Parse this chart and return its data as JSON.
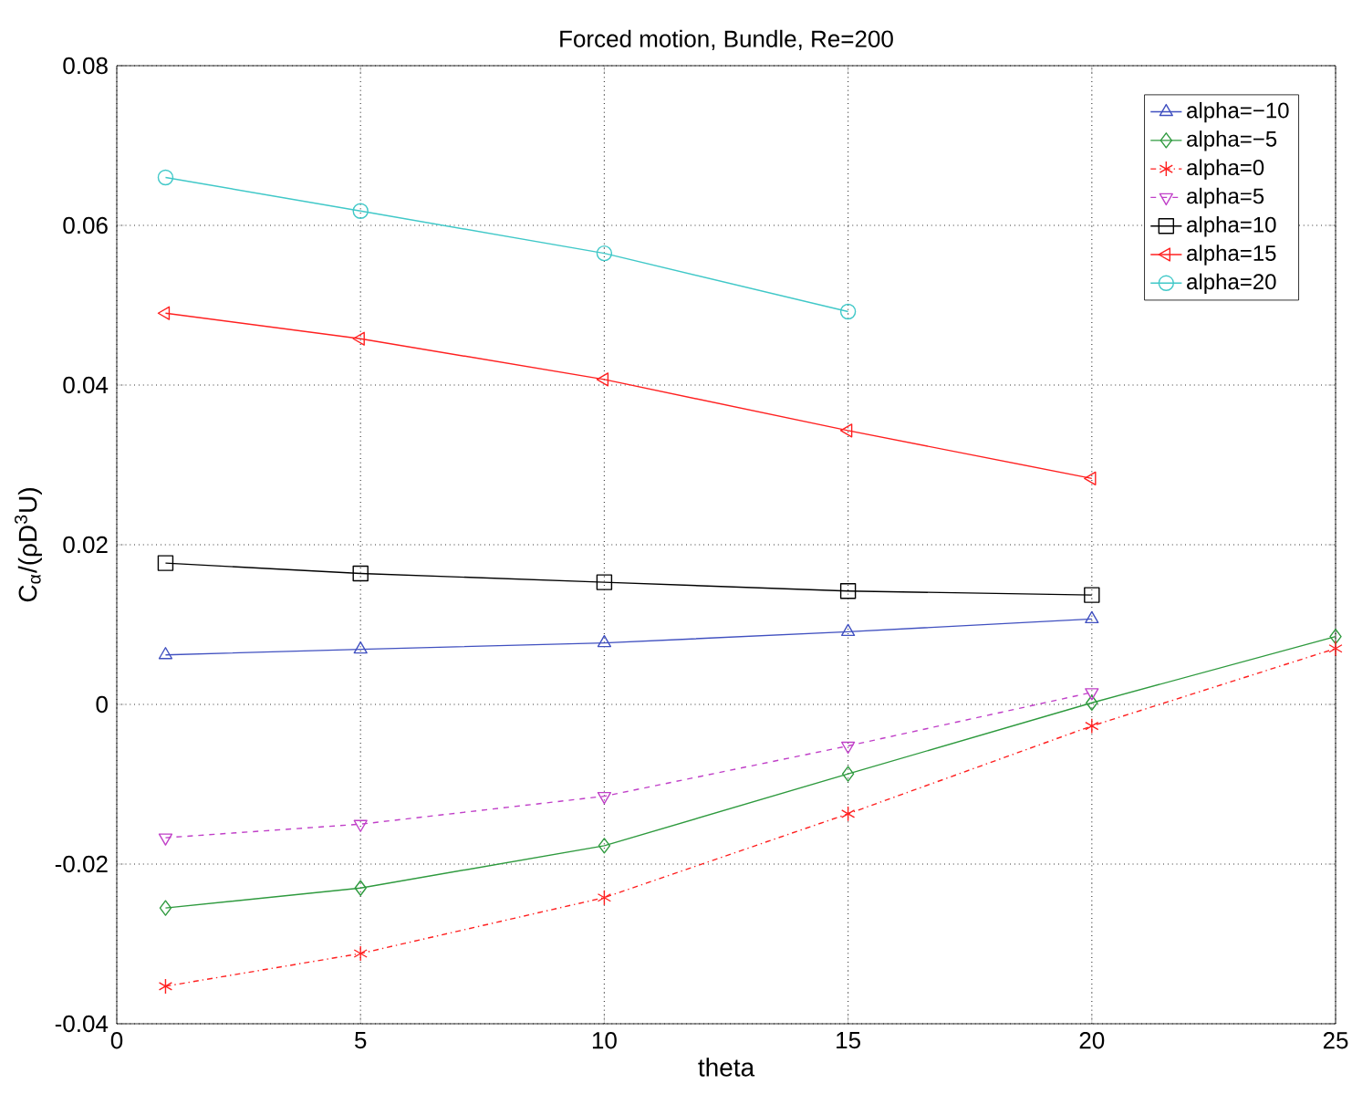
{
  "chart_data": {
    "type": "line",
    "title": "Forced motion, Bundle, Re=200",
    "xlabel": "theta",
    "ylabel": "C$_{α}$/(ρD$^{3}$U)",
    "xlim": [
      0,
      25
    ],
    "xticks": [
      0,
      5,
      10,
      15,
      20,
      25
    ],
    "ylim": [
      -0.04,
      0.08
    ],
    "yticks": [
      -0.04,
      -0.02,
      0,
      0.02,
      0.04,
      0.06,
      0.08
    ],
    "grid": true,
    "legend": "top right",
    "series": [
      {
        "name": "alpha=−10",
        "color": "#4050c0",
        "marker": "triangle",
        "line_style": "solid",
        "x": [
          1,
          5,
          10,
          15,
          20
        ],
        "values": [
          0.0062,
          0.0069,
          0.0077,
          0.0091,
          0.0107
        ]
      },
      {
        "name": "alpha=−5",
        "color": "#2e9a3e",
        "marker": "diamond",
        "line_style": "solid",
        "x": [
          1,
          5,
          10,
          15,
          20,
          25
        ],
        "values": [
          -0.0255,
          -0.023,
          -0.0177,
          -0.0087,
          0.0002,
          0.0085
        ]
      },
      {
        "name": "alpha=0",
        "color": "#ff2020",
        "marker": "cross",
        "line_style": "dashdot",
        "x": [
          1,
          5,
          10,
          15,
          20,
          25
        ],
        "values": [
          -0.0353,
          -0.0312,
          -0.0242,
          -0.0137,
          -0.0027,
          0.007
        ]
      },
      {
        "name": "alpha=5",
        "color": "#c040c8",
        "marker": "triangle-down",
        "line_style": "dashed",
        "x": [
          1,
          5,
          10,
          15,
          20
        ],
        "values": [
          -0.0167,
          -0.015,
          -0.0115,
          -0.0052,
          0.0015
        ]
      },
      {
        "name": "alpha=10",
        "color": "#000000",
        "marker": "square",
        "line_style": "solid",
        "x": [
          1,
          5,
          10,
          15,
          20
        ],
        "values": [
          0.0177,
          0.0164,
          0.0153,
          0.0142,
          0.0137
        ]
      },
      {
        "name": "alpha=15",
        "color": "#ff2020",
        "marker": "triangle-left",
        "line_style": "solid",
        "x": [
          1,
          5,
          10,
          15,
          20
        ],
        "values": [
          0.049,
          0.0458,
          0.0407,
          0.0343,
          0.0283
        ]
      },
      {
        "name": "alpha=20",
        "color": "#40c8c8",
        "marker": "circle",
        "line_style": "solid",
        "x": [
          1,
          5,
          10,
          15
        ],
        "values": [
          0.066,
          0.0618,
          0.0565,
          0.0492
        ]
      }
    ]
  }
}
